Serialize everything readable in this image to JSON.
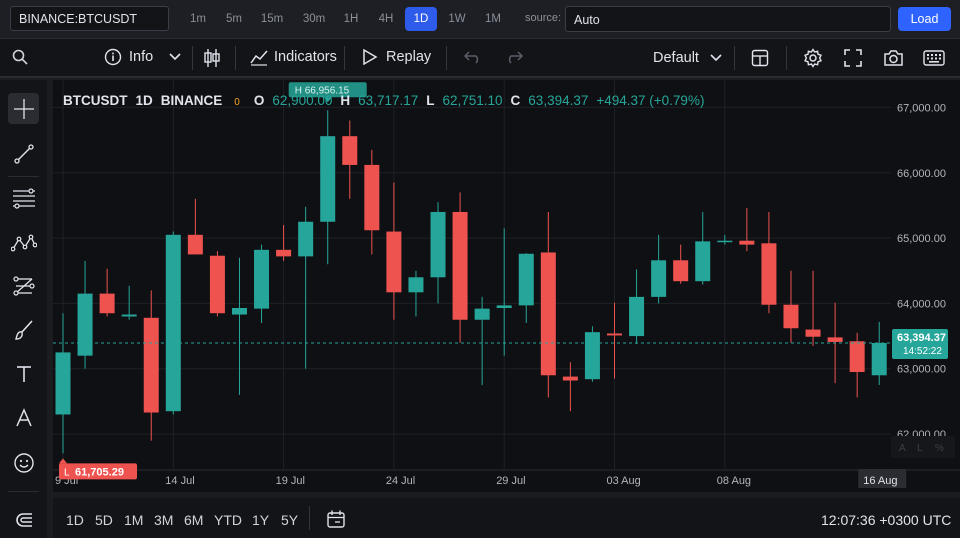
{
  "topbar": {
    "symbol": "BINANCE:BTCUSDT",
    "timeframes": [
      "1m",
      "5m",
      "15m",
      "30m",
      "1H",
      "4H",
      "1D",
      "1W",
      "1M"
    ],
    "active_timeframe": "1D",
    "source_label": "source:",
    "source_value": "Auto",
    "load_label": "Load"
  },
  "toolbar": {
    "info_label": "Info",
    "indicators_label": "Indicators",
    "replay_label": "Replay",
    "layout_label": "Default"
  },
  "legend": {
    "symbol": "BTCUSDT",
    "interval": "1D",
    "exchange": "BINANCE",
    "zero": "0",
    "o_label": "O",
    "o_value": "62,900.00",
    "h_label": "H",
    "h_value": "63,717.17",
    "l_label": "L",
    "l_value": "62,751.10",
    "c_label": "C",
    "c_value": "63,394.37",
    "change": "+494.37 (+0.79%)"
  },
  "chart_data": {
    "type": "candlestick",
    "x_tick_labels": [
      "9 Jul",
      "14 Jul",
      "19 Jul",
      "24 Jul",
      "29 Jul",
      "03 Aug",
      "08 Aug"
    ],
    "x_last_label": "16 Aug",
    "y_tick_labels": [
      "67,000.00",
      "66,000.00",
      "65,000.00",
      "64,000.00",
      "63,000.00",
      "62,000.00"
    ],
    "ylim": [
      61450,
      67420
    ],
    "last_price_label": "63,394.37",
    "countdown": "14:52:22",
    "last_price": 63394.37,
    "high_marker": "66,956.15",
    "high_marker_prefix": "H",
    "low_marker": "61,705.29",
    "low_marker_prefix": "L",
    "low_value": 61705.29,
    "high_value": 66956.15,
    "bull_color": "#26a69a",
    "bear_color": "#ef5350",
    "candles": [
      {
        "date": "2024-07-09",
        "o": 62300,
        "h": 63850,
        "l": 61705,
        "c": 63250
      },
      {
        "date": "2024-07-10",
        "o": 63200,
        "h": 64650,
        "l": 63000,
        "c": 64150
      },
      {
        "date": "2024-07-11",
        "o": 64150,
        "h": 64530,
        "l": 63800,
        "c": 63850
      },
      {
        "date": "2024-07-12",
        "o": 63800,
        "h": 64270,
        "l": 63750,
        "c": 63830
      },
      {
        "date": "2024-07-13",
        "o": 63780,
        "h": 64200,
        "l": 61900,
        "c": 62330
      },
      {
        "date": "2024-07-14",
        "o": 62350,
        "h": 65100,
        "l": 62300,
        "c": 65050
      },
      {
        "date": "2024-07-15",
        "o": 65050,
        "h": 65600,
        "l": 64800,
        "c": 64750
      },
      {
        "date": "2024-07-16",
        "o": 64730,
        "h": 64800,
        "l": 63800,
        "c": 63850
      },
      {
        "date": "2024-07-17",
        "o": 63830,
        "h": 64700,
        "l": 62600,
        "c": 63930
      },
      {
        "date": "2024-07-18",
        "o": 63920,
        "h": 64900,
        "l": 63700,
        "c": 64820
      },
      {
        "date": "2024-07-19",
        "o": 64820,
        "h": 65200,
        "l": 64650,
        "c": 64720
      },
      {
        "date": "2024-07-20",
        "o": 64720,
        "h": 65480,
        "l": 63000,
        "c": 65250
      },
      {
        "date": "2024-07-21",
        "o": 65250,
        "h": 66956,
        "l": 64600,
        "c": 66560
      },
      {
        "date": "2024-07-22",
        "o": 66560,
        "h": 66800,
        "l": 65600,
        "c": 66120
      },
      {
        "date": "2024-07-23",
        "o": 66120,
        "h": 66350,
        "l": 64750,
        "c": 65120
      },
      {
        "date": "2024-07-24",
        "o": 65100,
        "h": 65850,
        "l": 63750,
        "c": 64170
      },
      {
        "date": "2024-07-25",
        "o": 64170,
        "h": 64500,
        "l": 63800,
        "c": 64400
      },
      {
        "date": "2024-07-26",
        "o": 64400,
        "h": 65550,
        "l": 64000,
        "c": 65400
      },
      {
        "date": "2024-07-27",
        "o": 65400,
        "h": 65700,
        "l": 63400,
        "c": 63750
      },
      {
        "date": "2024-07-28",
        "o": 63750,
        "h": 64100,
        "l": 62750,
        "c": 63920
      },
      {
        "date": "2024-07-29",
        "o": 63930,
        "h": 65150,
        "l": 63200,
        "c": 63970
      },
      {
        "date": "2024-07-30",
        "o": 63970,
        "h": 64770,
        "l": 63700,
        "c": 64760
      },
      {
        "date": "2024-07-31",
        "o": 64780,
        "h": 65400,
        "l": 62560,
        "c": 62900
      },
      {
        "date": "2024-08-01",
        "o": 62880,
        "h": 63100,
        "l": 62350,
        "c": 62820
      },
      {
        "date": "2024-08-02",
        "o": 62840,
        "h": 63650,
        "l": 62800,
        "c": 63560
      },
      {
        "date": "2024-08-03",
        "o": 63540,
        "h": 64010,
        "l": 62850,
        "c": 63510
      },
      {
        "date": "2024-08-04",
        "o": 63500,
        "h": 64520,
        "l": 63380,
        "c": 64100
      },
      {
        "date": "2024-08-05",
        "o": 64100,
        "h": 65050,
        "l": 64000,
        "c": 64660
      },
      {
        "date": "2024-08-06",
        "o": 64660,
        "h": 64900,
        "l": 64300,
        "c": 64340
      },
      {
        "date": "2024-08-07",
        "o": 64340,
        "h": 65400,
        "l": 64290,
        "c": 64950
      },
      {
        "date": "2024-08-08",
        "o": 64950,
        "h": 65050,
        "l": 64900,
        "c": 64960
      },
      {
        "date": "2024-08-09",
        "o": 64960,
        "h": 65460,
        "l": 64800,
        "c": 64900
      },
      {
        "date": "2024-08-10",
        "o": 64920,
        "h": 65400,
        "l": 63850,
        "c": 63980
      },
      {
        "date": "2024-08-11",
        "o": 63980,
        "h": 64500,
        "l": 63400,
        "c": 63620
      },
      {
        "date": "2024-08-12",
        "o": 63600,
        "h": 64500,
        "l": 63350,
        "c": 63490
      },
      {
        "date": "2024-08-13",
        "o": 63480,
        "h": 64010,
        "l": 62780,
        "c": 63410
      },
      {
        "date": "2024-08-14",
        "o": 63420,
        "h": 63550,
        "l": 62560,
        "c": 62950
      },
      {
        "date": "2024-08-15",
        "o": 62900,
        "h": 63717,
        "l": 62751,
        "c": 63394
      }
    ]
  },
  "scale_buttons": [
    "A",
    "L",
    "%"
  ],
  "bottombar": {
    "ranges": [
      "1D",
      "5D",
      "1M",
      "3M",
      "6M",
      "YTD",
      "1Y",
      "5Y"
    ],
    "clock": "12:07:36 +0300 UTC"
  }
}
